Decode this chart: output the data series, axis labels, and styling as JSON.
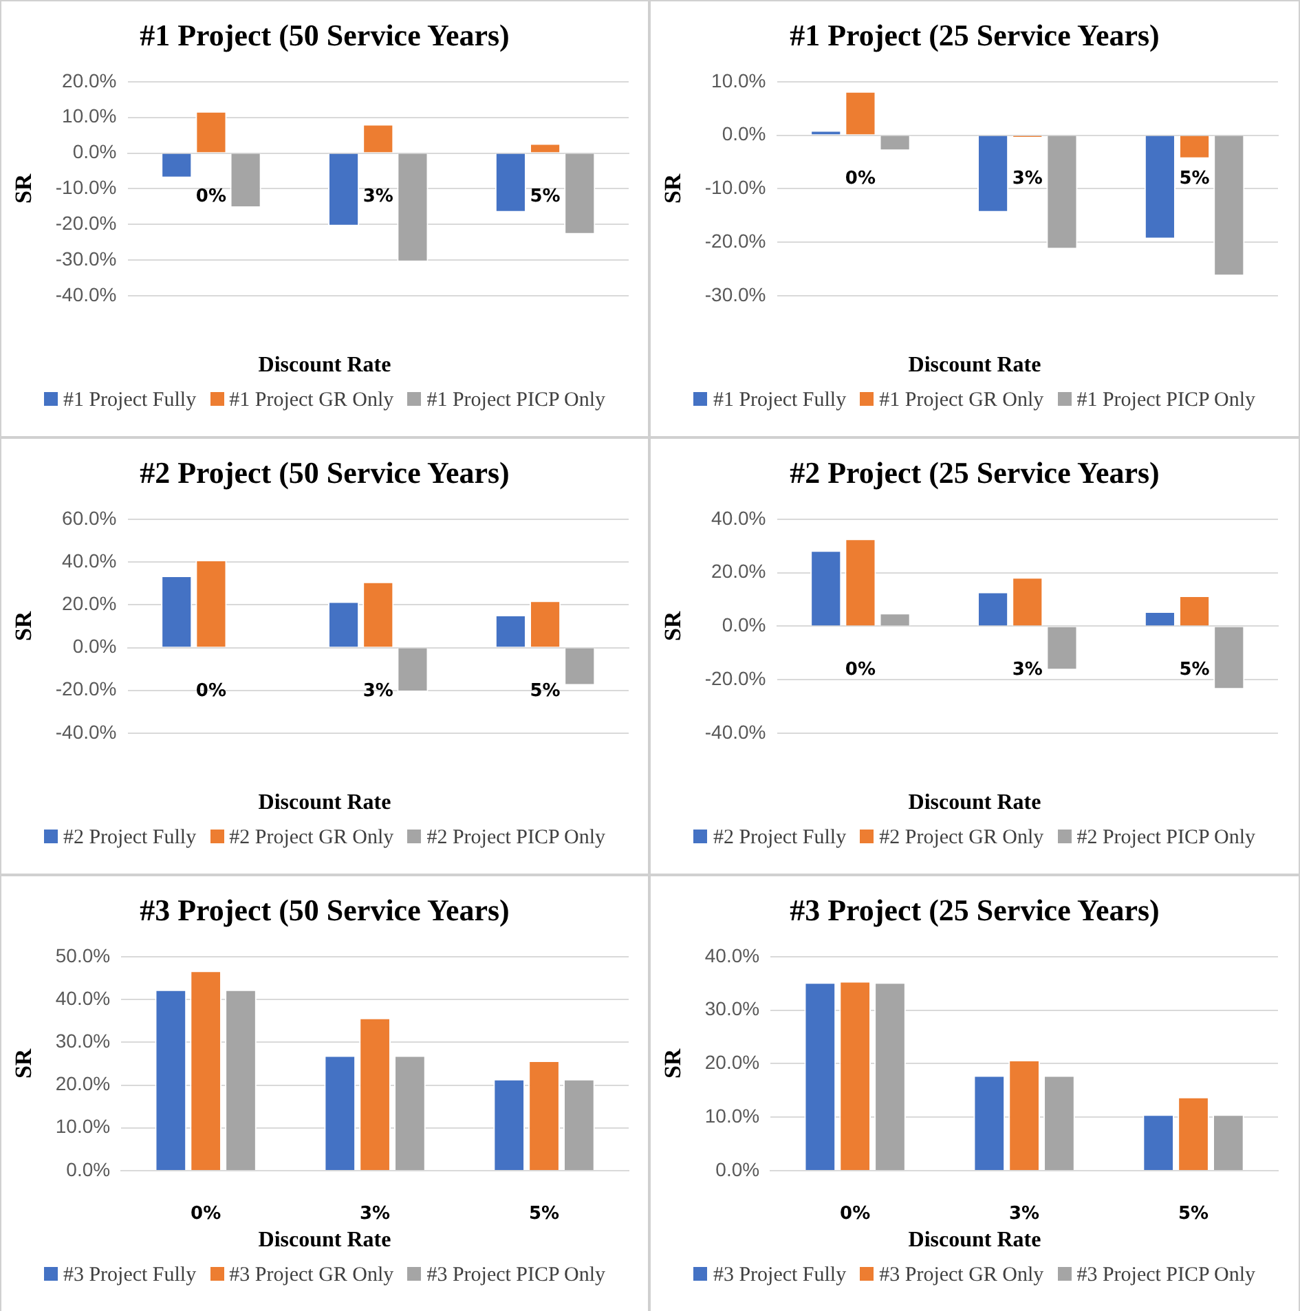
{
  "chart_data": [
    {
      "type": "bar",
      "title": "#1 Project (50 Service Years)",
      "xlabel": "Discount Rate",
      "ylabel": "SR",
      "categories": [
        "0%",
        "3%",
        "5%"
      ],
      "series": [
        {
          "name": "#1 Project Fully",
          "color": "#4472c4",
          "values": [
            -7.0,
            -20.5,
            -16.6
          ]
        },
        {
          "name": "#1 Project GR Only",
          "color": "#ed7d31",
          "values": [
            11.7,
            8.1,
            2.7
          ]
        },
        {
          "name": "#1 Project PICP Only",
          "color": "#a5a5a5",
          "values": [
            -15.3,
            -30.5,
            -22.8
          ]
        }
      ],
      "ylim": [
        -40,
        20
      ],
      "yticks": [
        {
          "value": -40,
          "label": "-40.0%"
        },
        {
          "value": -30,
          "label": "-30.0%"
        },
        {
          "value": -20,
          "label": "-20.0%"
        },
        {
          "value": -10,
          "label": "-10.0%"
        },
        {
          "value": 0,
          "label": "0.0%"
        },
        {
          "value": 10,
          "label": "10.0%"
        },
        {
          "value": 20,
          "label": "20.0%"
        }
      ],
      "grid": "y",
      "legend": "bottom"
    },
    {
      "type": "bar",
      "title": "#1 Project (25 Service Years)",
      "xlabel": "Discount Rate",
      "ylabel": "SR",
      "categories": [
        "0%",
        "3%",
        "5%"
      ],
      "series": [
        {
          "name": "#1 Project Fully",
          "color": "#4472c4",
          "values": [
            0.9,
            -14.4,
            -19.4
          ]
        },
        {
          "name": "#1 Project GR Only",
          "color": "#ed7d31",
          "values": [
            8.2,
            -0.5,
            -4.4
          ]
        },
        {
          "name": "#1 Project PICP Only",
          "color": "#a5a5a5",
          "values": [
            -2.9,
            -21.3,
            -26.3
          ]
        }
      ],
      "ylim": [
        -30,
        10
      ],
      "yticks": [
        {
          "value": -30,
          "label": "-30.0%"
        },
        {
          "value": -20,
          "label": "-20.0%"
        },
        {
          "value": -10,
          "label": "-10.0%"
        },
        {
          "value": 0,
          "label": "0.0%"
        },
        {
          "value": 10,
          "label": "10.0%"
        }
      ],
      "grid": "y",
      "legend": "bottom"
    },
    {
      "type": "bar",
      "title": "#2 Project (50 Service Years)",
      "xlabel": "Discount Rate",
      "ylabel": "SR",
      "categories": [
        "0%",
        "3%",
        "5%"
      ],
      "series": [
        {
          "name": "#2 Project Fully",
          "color": "#4472c4",
          "values": [
            33.6,
            21.5,
            15.3
          ]
        },
        {
          "name": "#2 Project GR Only",
          "color": "#ed7d31",
          "values": [
            41.0,
            30.8,
            21.9
          ]
        },
        {
          "name": "#2 Project PICP Only",
          "color": "#a5a5a5",
          "values": [
            0,
            -20.7,
            -17.7
          ]
        }
      ],
      "ylim": [
        -40,
        60
      ],
      "yticks": [
        {
          "value": -40,
          "label": "-40.0%"
        },
        {
          "value": -20,
          "label": "-20.0%"
        },
        {
          "value": 0,
          "label": "0.0%"
        },
        {
          "value": 20,
          "label": "20.0%"
        },
        {
          "value": 40,
          "label": "40.0%"
        },
        {
          "value": 60,
          "label": "60.0%"
        }
      ],
      "grid": "y",
      "legend": "bottom"
    },
    {
      "type": "bar",
      "title": "#2 Project (25 Service Years)",
      "xlabel": "Discount Rate",
      "ylabel": "SR",
      "categories": [
        "0%",
        "3%",
        "5%"
      ],
      "series": [
        {
          "name": "#2 Project Fully",
          "color": "#4472c4",
          "values": [
            28.3,
            12.8,
            5.5
          ]
        },
        {
          "name": "#2 Project GR Only",
          "color": "#ed7d31",
          "values": [
            32.7,
            18.3,
            11.4
          ]
        },
        {
          "name": "#2 Project PICP Only",
          "color": "#a5a5a5",
          "values": [
            4.9,
            -16.4,
            -23.6
          ]
        }
      ],
      "ylim": [
        -40,
        40
      ],
      "yticks": [
        {
          "value": -40,
          "label": "-40.0%"
        },
        {
          "value": -20,
          "label": "-20.0%"
        },
        {
          "value": 0,
          "label": "0.0%"
        },
        {
          "value": 20,
          "label": "20.0%"
        },
        {
          "value": 40,
          "label": "40.0%"
        }
      ],
      "grid": "y",
      "legend": "bottom"
    },
    {
      "type": "bar",
      "title": "#3 Project (50 Service Years)",
      "xlabel": "Discount Rate",
      "ylabel": "SR",
      "categories": [
        "0%",
        "3%",
        "5%"
      ],
      "series": [
        {
          "name": "#3 Project Fully",
          "color": "#4472c4",
          "values": [
            42.3,
            26.9,
            21.4
          ]
        },
        {
          "name": "#3 Project GR Only",
          "color": "#ed7d31",
          "values": [
            46.7,
            35.7,
            25.7
          ]
        },
        {
          "name": "#3 Project PICP Only",
          "color": "#a5a5a5",
          "values": [
            42.3,
            26.9,
            21.4
          ]
        }
      ],
      "ylim": [
        0,
        50
      ],
      "yticks": [
        {
          "value": 0,
          "label": "0.0%"
        },
        {
          "value": 10,
          "label": "10.0%"
        },
        {
          "value": 20,
          "label": "20.0%"
        },
        {
          "value": 30,
          "label": "30.0%"
        },
        {
          "value": 40,
          "label": "40.0%"
        },
        {
          "value": 50,
          "label": "50.0%"
        }
      ],
      "grid": "y",
      "legend": "bottom"
    },
    {
      "type": "bar",
      "title": "#3 Project (25 Service Years)",
      "xlabel": "Discount Rate",
      "ylabel": "SR",
      "categories": [
        "0%",
        "3%",
        "5%"
      ],
      "series": [
        {
          "name": "#3 Project Fully",
          "color": "#4472c4",
          "values": [
            35.2,
            17.8,
            10.5
          ]
        },
        {
          "name": "#3 Project GR Only",
          "color": "#ed7d31",
          "values": [
            35.4,
            20.7,
            13.8
          ]
        },
        {
          "name": "#3 Project PICP Only",
          "color": "#a5a5a5",
          "values": [
            35.2,
            17.8,
            10.5
          ]
        }
      ],
      "ylim": [
        0,
        40
      ],
      "yticks": [
        {
          "value": 0,
          "label": "0.0%"
        },
        {
          "value": 10,
          "label": "10.0%"
        },
        {
          "value": 20,
          "label": "20.0%"
        },
        {
          "value": 30,
          "label": "30.0%"
        },
        {
          "value": 40,
          "label": "40.0%"
        }
      ],
      "grid": "y",
      "legend": "bottom"
    }
  ]
}
